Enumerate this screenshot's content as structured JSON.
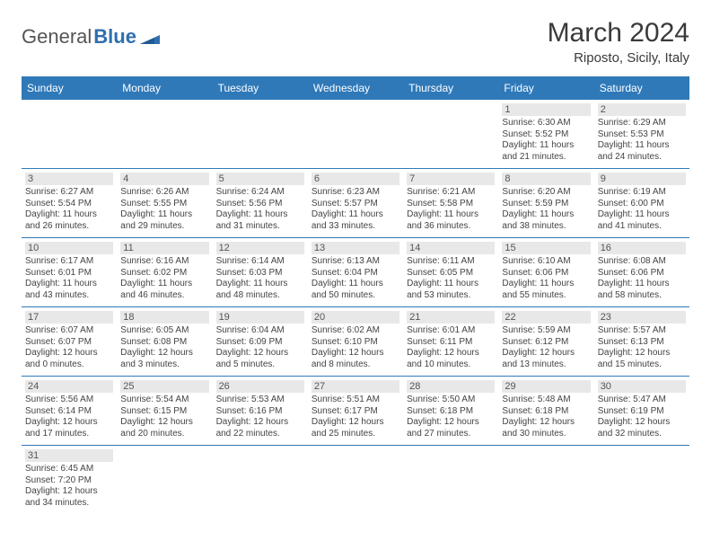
{
  "logo": {
    "text1": "General",
    "text2": "Blue"
  },
  "title": "March 2024",
  "location": "Riposto, Sicily, Italy",
  "colors": {
    "header_bg": "#2f79b9",
    "header_text": "#ffffff",
    "daynum_bg": "#e8e8e8",
    "border": "#2f79b9",
    "text": "#444444",
    "logo_accent": "#2f6fae"
  },
  "daysOfWeek": [
    "Sunday",
    "Monday",
    "Tuesday",
    "Wednesday",
    "Thursday",
    "Friday",
    "Saturday"
  ],
  "weeks": [
    [
      {
        "n": "",
        "l1": "",
        "l2": "",
        "l3": "",
        "l4": "",
        "empty": true
      },
      {
        "n": "",
        "l1": "",
        "l2": "",
        "l3": "",
        "l4": "",
        "empty": true
      },
      {
        "n": "",
        "l1": "",
        "l2": "",
        "l3": "",
        "l4": "",
        "empty": true
      },
      {
        "n": "",
        "l1": "",
        "l2": "",
        "l3": "",
        "l4": "",
        "empty": true
      },
      {
        "n": "",
        "l1": "",
        "l2": "",
        "l3": "",
        "l4": "",
        "empty": true
      },
      {
        "n": "1",
        "l1": "Sunrise: 6:30 AM",
        "l2": "Sunset: 5:52 PM",
        "l3": "Daylight: 11 hours",
        "l4": "and 21 minutes."
      },
      {
        "n": "2",
        "l1": "Sunrise: 6:29 AM",
        "l2": "Sunset: 5:53 PM",
        "l3": "Daylight: 11 hours",
        "l4": "and 24 minutes."
      }
    ],
    [
      {
        "n": "3",
        "l1": "Sunrise: 6:27 AM",
        "l2": "Sunset: 5:54 PM",
        "l3": "Daylight: 11 hours",
        "l4": "and 26 minutes."
      },
      {
        "n": "4",
        "l1": "Sunrise: 6:26 AM",
        "l2": "Sunset: 5:55 PM",
        "l3": "Daylight: 11 hours",
        "l4": "and 29 minutes."
      },
      {
        "n": "5",
        "l1": "Sunrise: 6:24 AM",
        "l2": "Sunset: 5:56 PM",
        "l3": "Daylight: 11 hours",
        "l4": "and 31 minutes."
      },
      {
        "n": "6",
        "l1": "Sunrise: 6:23 AM",
        "l2": "Sunset: 5:57 PM",
        "l3": "Daylight: 11 hours",
        "l4": "and 33 minutes."
      },
      {
        "n": "7",
        "l1": "Sunrise: 6:21 AM",
        "l2": "Sunset: 5:58 PM",
        "l3": "Daylight: 11 hours",
        "l4": "and 36 minutes."
      },
      {
        "n": "8",
        "l1": "Sunrise: 6:20 AM",
        "l2": "Sunset: 5:59 PM",
        "l3": "Daylight: 11 hours",
        "l4": "and 38 minutes."
      },
      {
        "n": "9",
        "l1": "Sunrise: 6:19 AM",
        "l2": "Sunset: 6:00 PM",
        "l3": "Daylight: 11 hours",
        "l4": "and 41 minutes."
      }
    ],
    [
      {
        "n": "10",
        "l1": "Sunrise: 6:17 AM",
        "l2": "Sunset: 6:01 PM",
        "l3": "Daylight: 11 hours",
        "l4": "and 43 minutes."
      },
      {
        "n": "11",
        "l1": "Sunrise: 6:16 AM",
        "l2": "Sunset: 6:02 PM",
        "l3": "Daylight: 11 hours",
        "l4": "and 46 minutes."
      },
      {
        "n": "12",
        "l1": "Sunrise: 6:14 AM",
        "l2": "Sunset: 6:03 PM",
        "l3": "Daylight: 11 hours",
        "l4": "and 48 minutes."
      },
      {
        "n": "13",
        "l1": "Sunrise: 6:13 AM",
        "l2": "Sunset: 6:04 PM",
        "l3": "Daylight: 11 hours",
        "l4": "and 50 minutes."
      },
      {
        "n": "14",
        "l1": "Sunrise: 6:11 AM",
        "l2": "Sunset: 6:05 PM",
        "l3": "Daylight: 11 hours",
        "l4": "and 53 minutes."
      },
      {
        "n": "15",
        "l1": "Sunrise: 6:10 AM",
        "l2": "Sunset: 6:06 PM",
        "l3": "Daylight: 11 hours",
        "l4": "and 55 minutes."
      },
      {
        "n": "16",
        "l1": "Sunrise: 6:08 AM",
        "l2": "Sunset: 6:06 PM",
        "l3": "Daylight: 11 hours",
        "l4": "and 58 minutes."
      }
    ],
    [
      {
        "n": "17",
        "l1": "Sunrise: 6:07 AM",
        "l2": "Sunset: 6:07 PM",
        "l3": "Daylight: 12 hours",
        "l4": "and 0 minutes."
      },
      {
        "n": "18",
        "l1": "Sunrise: 6:05 AM",
        "l2": "Sunset: 6:08 PM",
        "l3": "Daylight: 12 hours",
        "l4": "and 3 minutes."
      },
      {
        "n": "19",
        "l1": "Sunrise: 6:04 AM",
        "l2": "Sunset: 6:09 PM",
        "l3": "Daylight: 12 hours",
        "l4": "and 5 minutes."
      },
      {
        "n": "20",
        "l1": "Sunrise: 6:02 AM",
        "l2": "Sunset: 6:10 PM",
        "l3": "Daylight: 12 hours",
        "l4": "and 8 minutes."
      },
      {
        "n": "21",
        "l1": "Sunrise: 6:01 AM",
        "l2": "Sunset: 6:11 PM",
        "l3": "Daylight: 12 hours",
        "l4": "and 10 minutes."
      },
      {
        "n": "22",
        "l1": "Sunrise: 5:59 AM",
        "l2": "Sunset: 6:12 PM",
        "l3": "Daylight: 12 hours",
        "l4": "and 13 minutes."
      },
      {
        "n": "23",
        "l1": "Sunrise: 5:57 AM",
        "l2": "Sunset: 6:13 PM",
        "l3": "Daylight: 12 hours",
        "l4": "and 15 minutes."
      }
    ],
    [
      {
        "n": "24",
        "l1": "Sunrise: 5:56 AM",
        "l2": "Sunset: 6:14 PM",
        "l3": "Daylight: 12 hours",
        "l4": "and 17 minutes."
      },
      {
        "n": "25",
        "l1": "Sunrise: 5:54 AM",
        "l2": "Sunset: 6:15 PM",
        "l3": "Daylight: 12 hours",
        "l4": "and 20 minutes."
      },
      {
        "n": "26",
        "l1": "Sunrise: 5:53 AM",
        "l2": "Sunset: 6:16 PM",
        "l3": "Daylight: 12 hours",
        "l4": "and 22 minutes."
      },
      {
        "n": "27",
        "l1": "Sunrise: 5:51 AM",
        "l2": "Sunset: 6:17 PM",
        "l3": "Daylight: 12 hours",
        "l4": "and 25 minutes."
      },
      {
        "n": "28",
        "l1": "Sunrise: 5:50 AM",
        "l2": "Sunset: 6:18 PM",
        "l3": "Daylight: 12 hours",
        "l4": "and 27 minutes."
      },
      {
        "n": "29",
        "l1": "Sunrise: 5:48 AM",
        "l2": "Sunset: 6:18 PM",
        "l3": "Daylight: 12 hours",
        "l4": "and 30 minutes."
      },
      {
        "n": "30",
        "l1": "Sunrise: 5:47 AM",
        "l2": "Sunset: 6:19 PM",
        "l3": "Daylight: 12 hours",
        "l4": "and 32 minutes."
      }
    ],
    [
      {
        "n": "31",
        "l1": "Sunrise: 6:45 AM",
        "l2": "Sunset: 7:20 PM",
        "l3": "Daylight: 12 hours",
        "l4": "and 34 minutes."
      },
      {
        "n": "",
        "l1": "",
        "l2": "",
        "l3": "",
        "l4": "",
        "empty": true
      },
      {
        "n": "",
        "l1": "",
        "l2": "",
        "l3": "",
        "l4": "",
        "empty": true
      },
      {
        "n": "",
        "l1": "",
        "l2": "",
        "l3": "",
        "l4": "",
        "empty": true
      },
      {
        "n": "",
        "l1": "",
        "l2": "",
        "l3": "",
        "l4": "",
        "empty": true
      },
      {
        "n": "",
        "l1": "",
        "l2": "",
        "l3": "",
        "l4": "",
        "empty": true
      },
      {
        "n": "",
        "l1": "",
        "l2": "",
        "l3": "",
        "l4": "",
        "empty": true
      }
    ]
  ]
}
